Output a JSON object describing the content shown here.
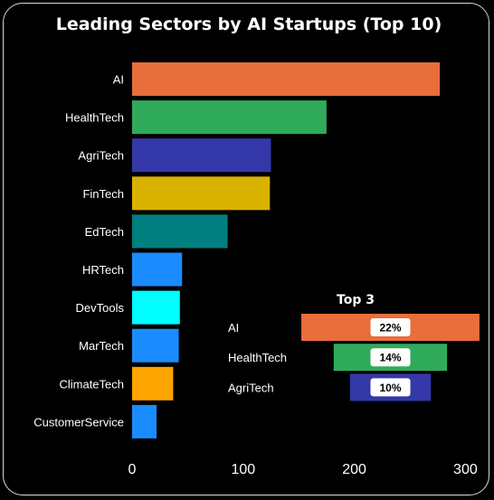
{
  "chart_data": [
    {
      "type": "bar",
      "orientation": "horizontal",
      "title": "Leading Sectors by AI Startups (Top 10)",
      "xlabel": "",
      "ylabel": "",
      "xlim": [
        0,
        310
      ],
      "xticks": [
        0,
        100,
        200,
        300
      ],
      "grid": false,
      "categories": [
        "AI",
        "HealthTech",
        "AgriTech",
        "FinTech",
        "EdTech",
        "HRTech",
        "DevTools",
        "MarTech",
        "ClimateTech",
        "CustomerService"
      ],
      "values": [
        277,
        175,
        125,
        124,
        86,
        45,
        43,
        42,
        37,
        22
      ],
      "colors": [
        "#e86e3b",
        "#2fab5a",
        "#3438a8",
        "#d9b300",
        "#007f80",
        "#1a8cff",
        "#00ffff",
        "#1a8cff",
        "#ffa500",
        "#1a8cff"
      ]
    },
    {
      "type": "bar",
      "orientation": "horizontal-centered",
      "title": "Top 3",
      "categories": [
        "AI",
        "HealthTech",
        "AgriTech"
      ],
      "values": [
        22,
        14,
        10
      ],
      "labels": [
        "22%",
        "14%",
        "10%"
      ],
      "unit": "%",
      "colors": [
        "#e86e3b",
        "#2fab5a",
        "#3438a8"
      ]
    }
  ]
}
